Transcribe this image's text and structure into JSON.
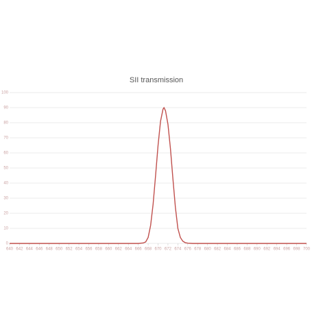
{
  "chart_data": {
    "type": "line",
    "title": "SII transmission",
    "x": [
      640,
      666,
      667,
      667.5,
      668,
      668.5,
      669,
      669.5,
      670,
      670.5,
      671,
      671.2,
      671.5,
      672,
      672.5,
      673,
      673.5,
      674,
      674.5,
      675,
      675.5,
      676,
      677,
      700
    ],
    "series": [
      {
        "color": "#c0504d",
        "values": [
          0,
          0,
          0.3,
          1,
          4,
          12,
          26,
          45,
          65,
          81,
          89,
          90,
          88,
          79,
          63,
          43,
          24,
          10,
          4,
          1.5,
          0.5,
          0.2,
          0,
          0
        ]
      }
    ],
    "xlim": [
      640,
      700
    ],
    "xticks": [
      640,
      642,
      644,
      646,
      648,
      650,
      652,
      654,
      656,
      658,
      660,
      662,
      664,
      666,
      668,
      670,
      672,
      674,
      676,
      678,
      680,
      682,
      684,
      686,
      688,
      690,
      692,
      694,
      696,
      698,
      700
    ],
    "ylim": [
      0,
      100
    ],
    "yticks": [
      0,
      10,
      20,
      30,
      40,
      50,
      60,
      70,
      80,
      90,
      100
    ],
    "grid": true
  }
}
